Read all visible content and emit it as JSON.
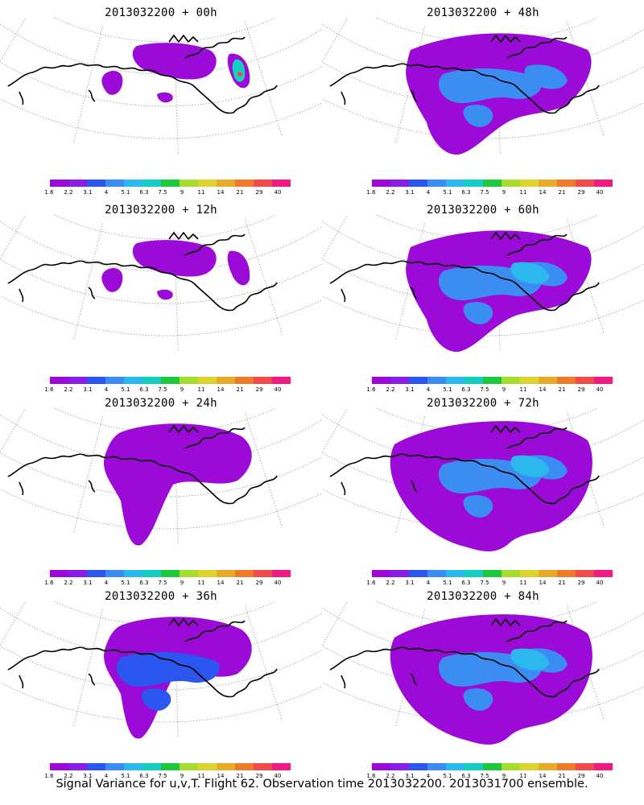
{
  "colorbar": {
    "ticks": [
      "1.6",
      "2.2",
      "3.1",
      "4",
      "5.1",
      "6.3",
      "7.5",
      "9",
      "11",
      "14",
      "21",
      "29",
      "40"
    ],
    "colors": [
      "#9b0ad6",
      "#8a1ce6",
      "#2a55ee",
      "#3c8df2",
      "#2bb8ec",
      "#14cfc1",
      "#1ec83c",
      "#a6dc2e",
      "#dcd42c",
      "#e8aa2a",
      "#ee7a2c",
      "#f04a4a",
      "#f01a82"
    ]
  },
  "panels": [
    {
      "title": "2013032200 + 00h",
      "level": 0
    },
    {
      "title": "2013032200 + 48h",
      "level": 4
    },
    {
      "title": "2013032200 + 12h",
      "level": 1
    },
    {
      "title": "2013032200 + 60h",
      "level": 5
    },
    {
      "title": "2013032200 + 24h",
      "level": 2
    },
    {
      "title": "2013032200 + 72h",
      "level": 6
    },
    {
      "title": "2013032200 + 36h",
      "level": 3
    },
    {
      "title": "2013032200 + 84h",
      "level": 7
    }
  ],
  "footer": "Signal Variance for u,v,T. Flight 62. Observation time 2013032200. 2013031700 ensemble."
}
